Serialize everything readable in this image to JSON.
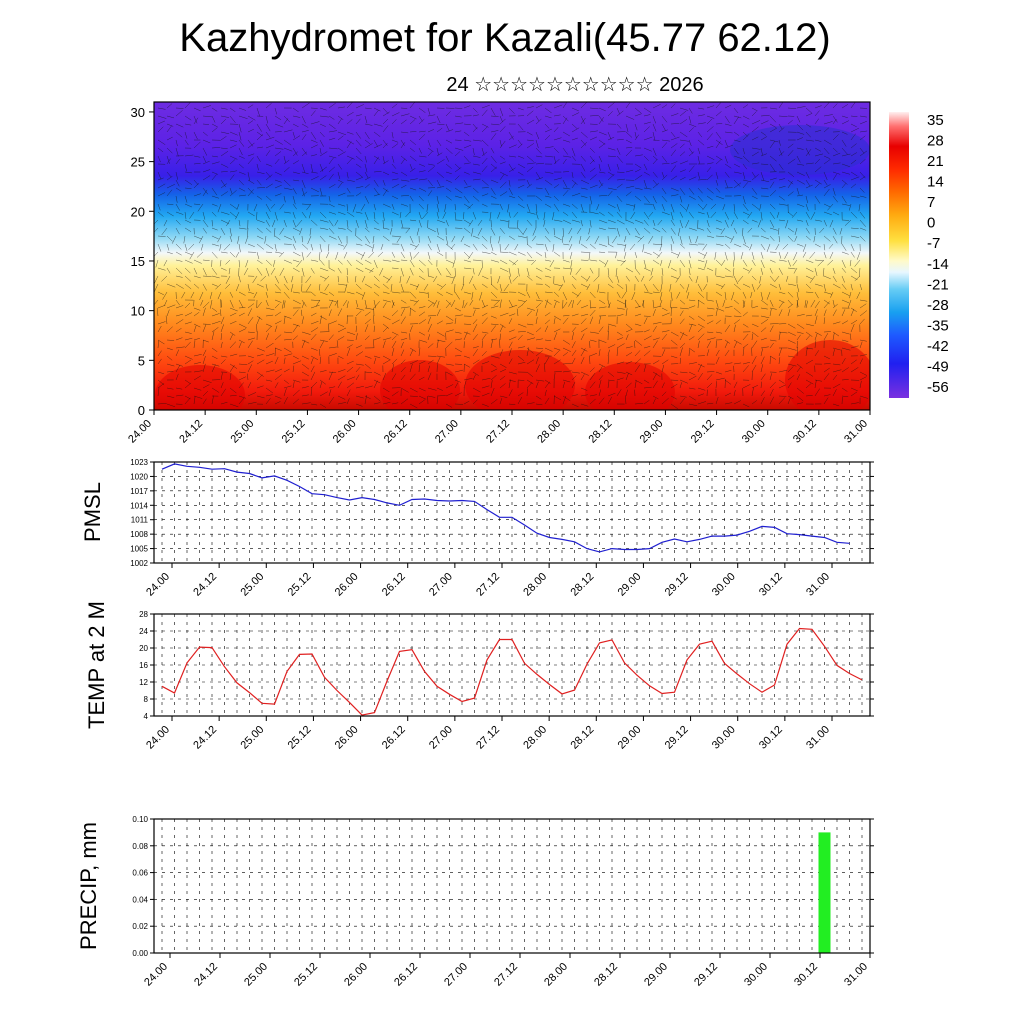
{
  "title": "Kazhydromet for Kazali(45.77 62.12)",
  "subtitle": "24 ☆☆☆☆☆☆☆☆☆☆ 2026",
  "chart_data": [
    {
      "type": "heatmap",
      "title": "",
      "ylabel": "",
      "ylim": [
        0,
        31
      ],
      "y_ticks": [
        "0",
        "5",
        "10",
        "15",
        "20",
        "25",
        "30"
      ],
      "x_ticks": [
        "24.00",
        "24.12",
        "25.00",
        "25.12",
        "26.00",
        "26.12",
        "27.00",
        "27.12",
        "28.00",
        "28.12",
        "29.00",
        "29.12",
        "30.00",
        "30.12",
        "31.00"
      ],
      "colorbar_labels": [
        "35",
        "28",
        "21",
        "14",
        "7",
        "0",
        "-7",
        "-14",
        "-21",
        "-28",
        "-35",
        "-42",
        "-49",
        "-56"
      ],
      "vectors": "wind vectors overlaid"
    },
    {
      "type": "line",
      "ylabel": "PMSL",
      "ylim": [
        1002,
        1023
      ],
      "y_ticks": [
        "1002",
        "1005",
        "1008",
        "1011",
        "1014",
        "1017",
        "1020",
        "1023"
      ],
      "x_ticks": [
        "24.00",
        "24.12",
        "25.00",
        "25.12",
        "26.00",
        "26.12",
        "27.00",
        "27.12",
        "28.00",
        "28.12",
        "29.00",
        "29.12",
        "30.00",
        "30.12",
        "31.00"
      ],
      "series": [
        {
          "color": "#1f1fd0",
          "values": [
            1021.5,
            1022.6,
            1022.1,
            1021.9,
            1021.5,
            1021.6,
            1020.9,
            1020.6,
            1019.7,
            1020.1,
            1019.2,
            1017.9,
            1016.4,
            1016.2,
            1015.6,
            1015.1,
            1015.6,
            1015.2,
            1014.5,
            1014.0,
            1015.2,
            1015.3,
            1015.0,
            1014.9,
            1015.0,
            1014.8,
            1013.1,
            1011.5,
            1011.5,
            1009.9,
            1008.2,
            1007.3,
            1006.9,
            1006.4,
            1005.0,
            1004.3,
            1005.0,
            1004.8,
            1004.8,
            1005.0,
            1006.3,
            1007.0,
            1006.4,
            1006.9,
            1007.6,
            1007.6,
            1007.8,
            1008.6,
            1009.6,
            1009.4,
            1008.1,
            1007.9,
            1007.6,
            1007.3,
            1006.3,
            1006.1
          ]
        }
      ]
    },
    {
      "type": "line",
      "ylabel": "TEMP at 2 M",
      "ylim": [
        4,
        28
      ],
      "y_ticks": [
        "4",
        "8",
        "12",
        "16",
        "20",
        "24",
        "28"
      ],
      "x_ticks": [
        "24.00",
        "24.12",
        "25.00",
        "25.12",
        "26.00",
        "26.12",
        "27.00",
        "27.12",
        "28.00",
        "28.12",
        "29.00",
        "29.12",
        "30.00",
        "30.12",
        "31.00"
      ],
      "series": [
        {
          "color": "#e02020",
          "values": [
            11.0,
            9.4,
            16.5,
            20.2,
            20.1,
            15.6,
            11.8,
            9.5,
            7.0,
            6.8,
            14.5,
            18.5,
            18.6,
            13.1,
            10.0,
            7.2,
            4.2,
            4.8,
            12.2,
            19.2,
            19.6,
            14.5,
            11.0,
            9.1,
            7.4,
            8.2,
            17.2,
            22.0,
            22.0,
            16.4,
            13.8,
            11.4,
            9.2,
            10.1,
            16.2,
            21.2,
            21.9,
            16.5,
            13.6,
            11.1,
            9.3,
            9.6,
            17.2,
            20.9,
            21.6,
            16.4,
            13.9,
            11.6,
            9.6,
            11.3,
            20.9,
            24.6,
            24.4,
            20.4,
            15.9,
            14.0,
            12.5
          ]
        }
      ]
    },
    {
      "type": "bar",
      "ylabel": "PRECIP, mm",
      "ylim": [
        0,
        0.1
      ],
      "y_ticks": [
        "0.00",
        "0.02",
        "0.04",
        "0.06",
        "0.08",
        "0.10"
      ],
      "x_ticks": [
        "24.00",
        "24.12",
        "25.00",
        "25.12",
        "26.00",
        "26.12",
        "27.00",
        "27.12",
        "28.00",
        "28.12",
        "29.00",
        "29.12",
        "30.00",
        "30.12",
        "31.00"
      ],
      "bars": [
        {
          "x_step": 53,
          "value": 0.09,
          "color": "#22ee22"
        }
      ]
    }
  ]
}
